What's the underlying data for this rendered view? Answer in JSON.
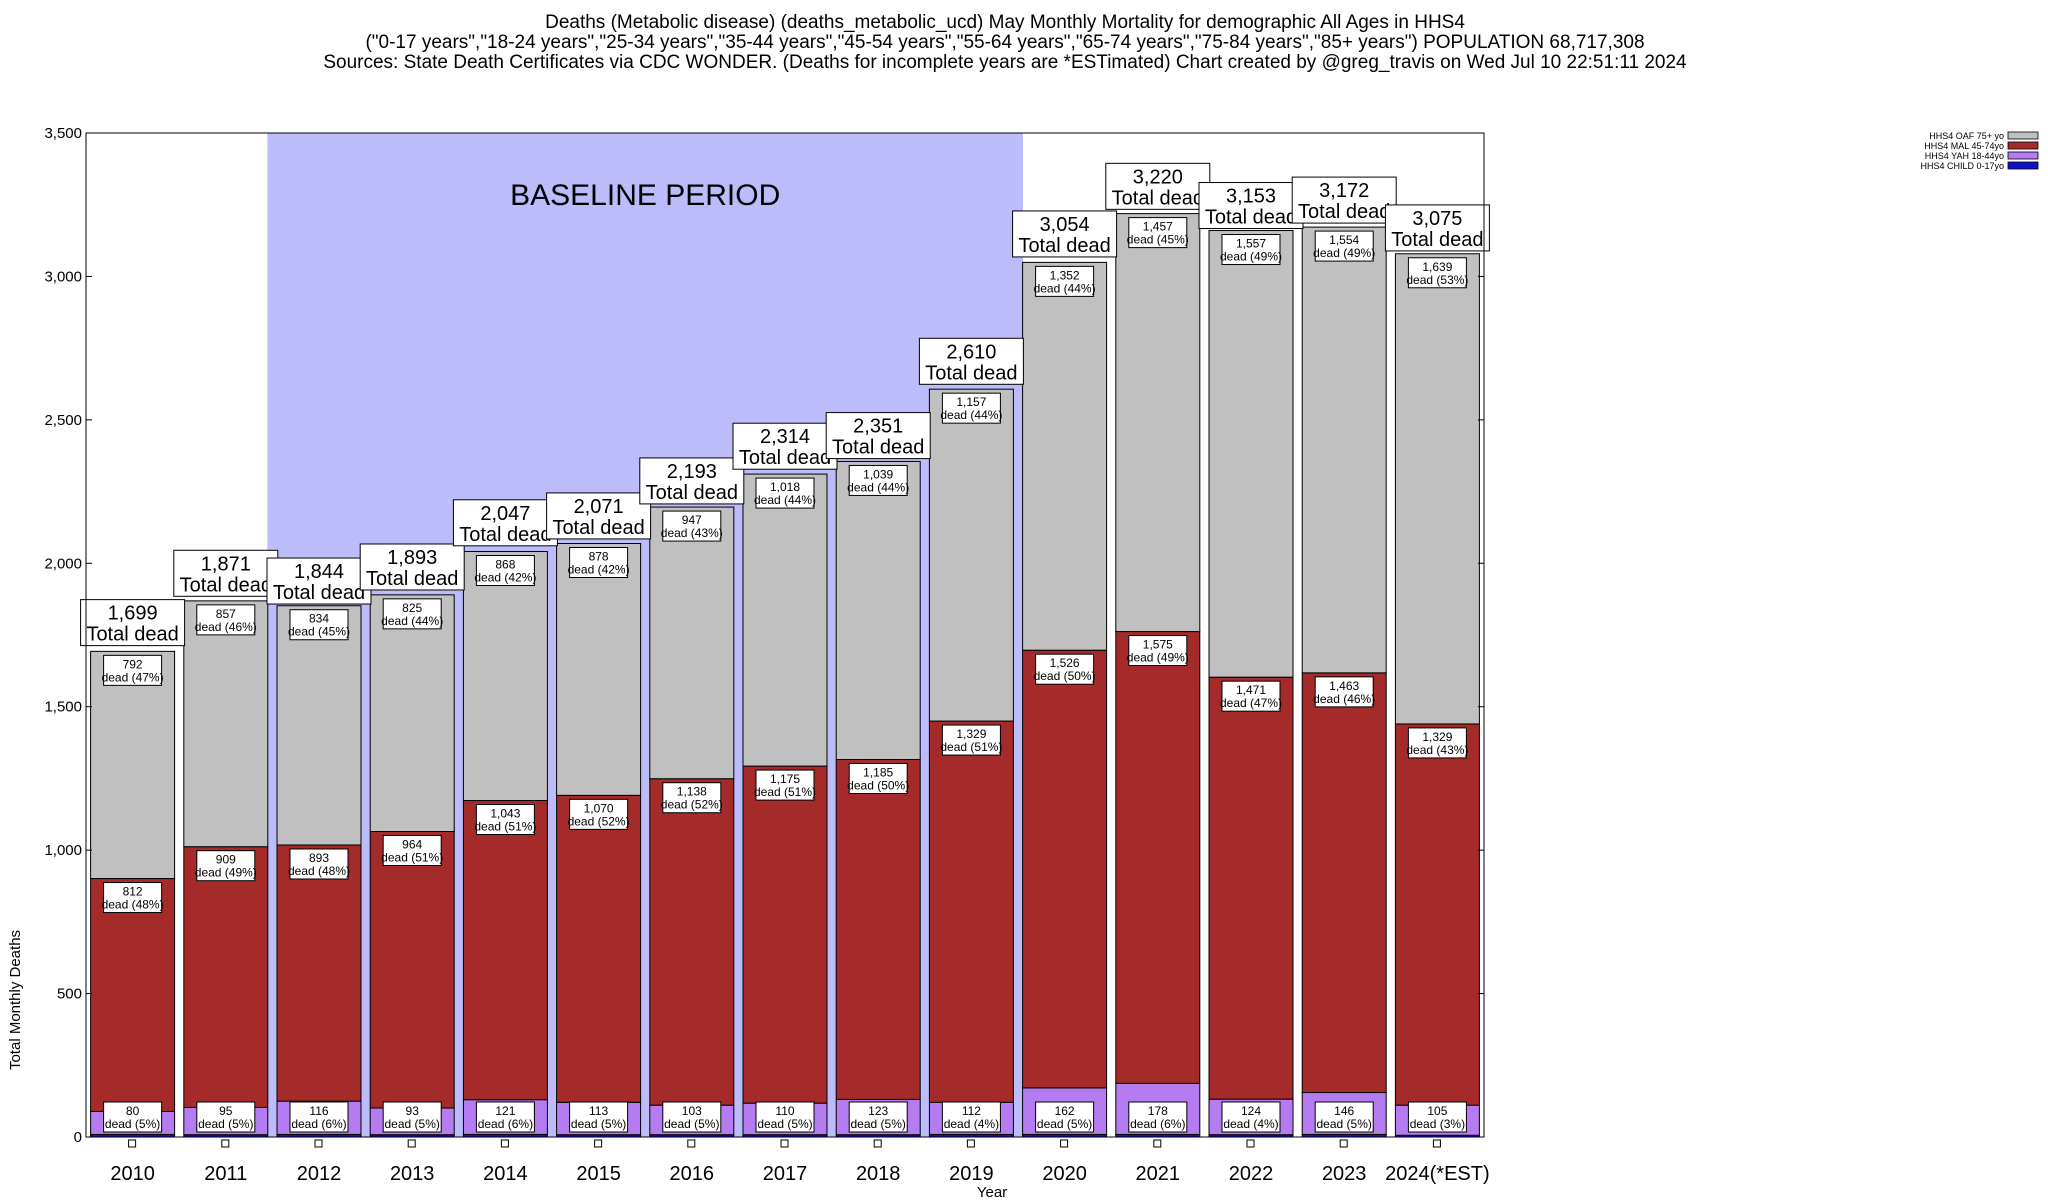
{
  "chart_data": {
    "type": "bar",
    "stacked": true,
    "title_lines": [
      "Deaths (Metabolic disease) (deaths_metabolic_ucd) May Monthly Mortality for demographic All Ages in HHS4",
      "(\"0-17 years\",\"18-24 years\",\"25-34 years\",\"35-44 years\",\"45-54 years\",\"55-64 years\",\"65-74 years\",\"75-84 years\",\"85+ years\") POPULATION 68,717,308",
      "Sources: State Death Certificates via CDC WONDER. (Deaths for incomplete years are *ESTimated)                Chart created by @greg_travis on Wed Jul 10 22:51:11 2024"
    ],
    "xlabel": "Year",
    "ylabel": "Total Monthly Deaths",
    "ylim": [
      0,
      3500
    ],
    "yticks": [
      0,
      500,
      1000,
      1500,
      2000,
      2500,
      3000,
      3500
    ],
    "ytick_labels": [
      "0",
      "500",
      "1,000",
      "1,500",
      "2,000",
      "2,500",
      "3,000",
      "3,500"
    ],
    "categories": [
      "2010",
      "2011",
      "2012",
      "2013",
      "2014",
      "2015",
      "2016",
      "2017",
      "2018",
      "2019",
      "2020",
      "2021",
      "2022",
      "2023",
      "2024(*EST)"
    ],
    "legend_position": "top-right",
    "grid": false,
    "baseline": {
      "label": "BASELINE PERIOD",
      "start": "2012",
      "end": "2019",
      "color": "#bcbcfb"
    },
    "series": [
      {
        "name": "HHS4 CHILD 0-17yo",
        "color": "#1010c8",
        "values": [
          9,
          8,
          9,
          8,
          9,
          8,
          8,
          8,
          8,
          9,
          9,
          9,
          8,
          9,
          6
        ]
      },
      {
        "name": "HHS4 YAH 18-44yo",
        "color": "#b57bf0",
        "values": [
          80,
          95,
          116,
          93,
          121,
          113,
          103,
          110,
          123,
          112,
          162,
          178,
          124,
          146,
          105
        ],
        "labels": [
          "80",
          "95",
          "116",
          "93",
          "121",
          "113",
          "103",
          "110",
          "123",
          "112",
          "162",
          "178",
          "124",
          "146",
          "105"
        ],
        "pct_labels": [
          "dead (5%)",
          "dead (5%)",
          "dead (6%)",
          "dead (5%)",
          "dead (6%)",
          "dead (5%)",
          "dead (5%)",
          "dead (5%)",
          "dead (5%)",
          "dead (4%)",
          "dead (5%)",
          "dead (6%)",
          "dead (4%)",
          "dead (5%)",
          "dead (3%)"
        ]
      },
      {
        "name": "HHS4 MAL 45-74yo",
        "color": "#a52a2a",
        "values": [
          812,
          909,
          893,
          964,
          1043,
          1070,
          1138,
          1175,
          1185,
          1329,
          1526,
          1575,
          1471,
          1463,
          1329
        ],
        "labels": [
          "812",
          "909",
          "893",
          "964",
          "1,043",
          "1,070",
          "1,138",
          "1,175",
          "1,185",
          "1,329",
          "1,526",
          "1,575",
          "1,471",
          "1,463",
          "1,329"
        ],
        "pct_labels": [
          "dead (48%)",
          "dead (49%)",
          "dead (48%)",
          "dead (51%)",
          "dead (51%)",
          "dead (52%)",
          "dead (52%)",
          "dead (51%)",
          "dead (50%)",
          "dead (51%)",
          "dead (50%)",
          "dead (49%)",
          "dead (47%)",
          "dead (46%)",
          "dead (43%)"
        ]
      },
      {
        "name": "HHS4 OAF 75+ yo",
        "color": "#c0c0c0",
        "values": [
          792,
          857,
          834,
          825,
          868,
          878,
          947,
          1018,
          1039,
          1157,
          1352,
          1457,
          1557,
          1554,
          1639
        ],
        "labels": [
          "792",
          "857",
          "834",
          "825",
          "868",
          "878",
          "947",
          "1,018",
          "1,039",
          "1,157",
          "1,352",
          "1,457",
          "1,557",
          "1,554",
          "1,639"
        ],
        "pct_labels": [
          "dead (47%)",
          "dead (46%)",
          "dead (45%)",
          "dead (44%)",
          "dead (42%)",
          "dead (42%)",
          "dead (43%)",
          "dead (44%)",
          "dead (44%)",
          "dead (44%)",
          "dead (44%)",
          "dead (45%)",
          "dead (49%)",
          "dead (49%)",
          "dead (53%)"
        ]
      }
    ],
    "totals": [
      1699,
      1871,
      1844,
      1893,
      2047,
      2071,
      2193,
      2314,
      2351,
      2610,
      3054,
      3220,
      3153,
      3172,
      3075
    ],
    "total_labels": [
      "1,699",
      "1,871",
      "1,844",
      "1,893",
      "2,047",
      "2,071",
      "2,193",
      "2,314",
      "2,351",
      "2,610",
      "3,054",
      "3,220",
      "3,153",
      "3,172",
      "3,075"
    ],
    "total_suffix": "Total dead"
  }
}
